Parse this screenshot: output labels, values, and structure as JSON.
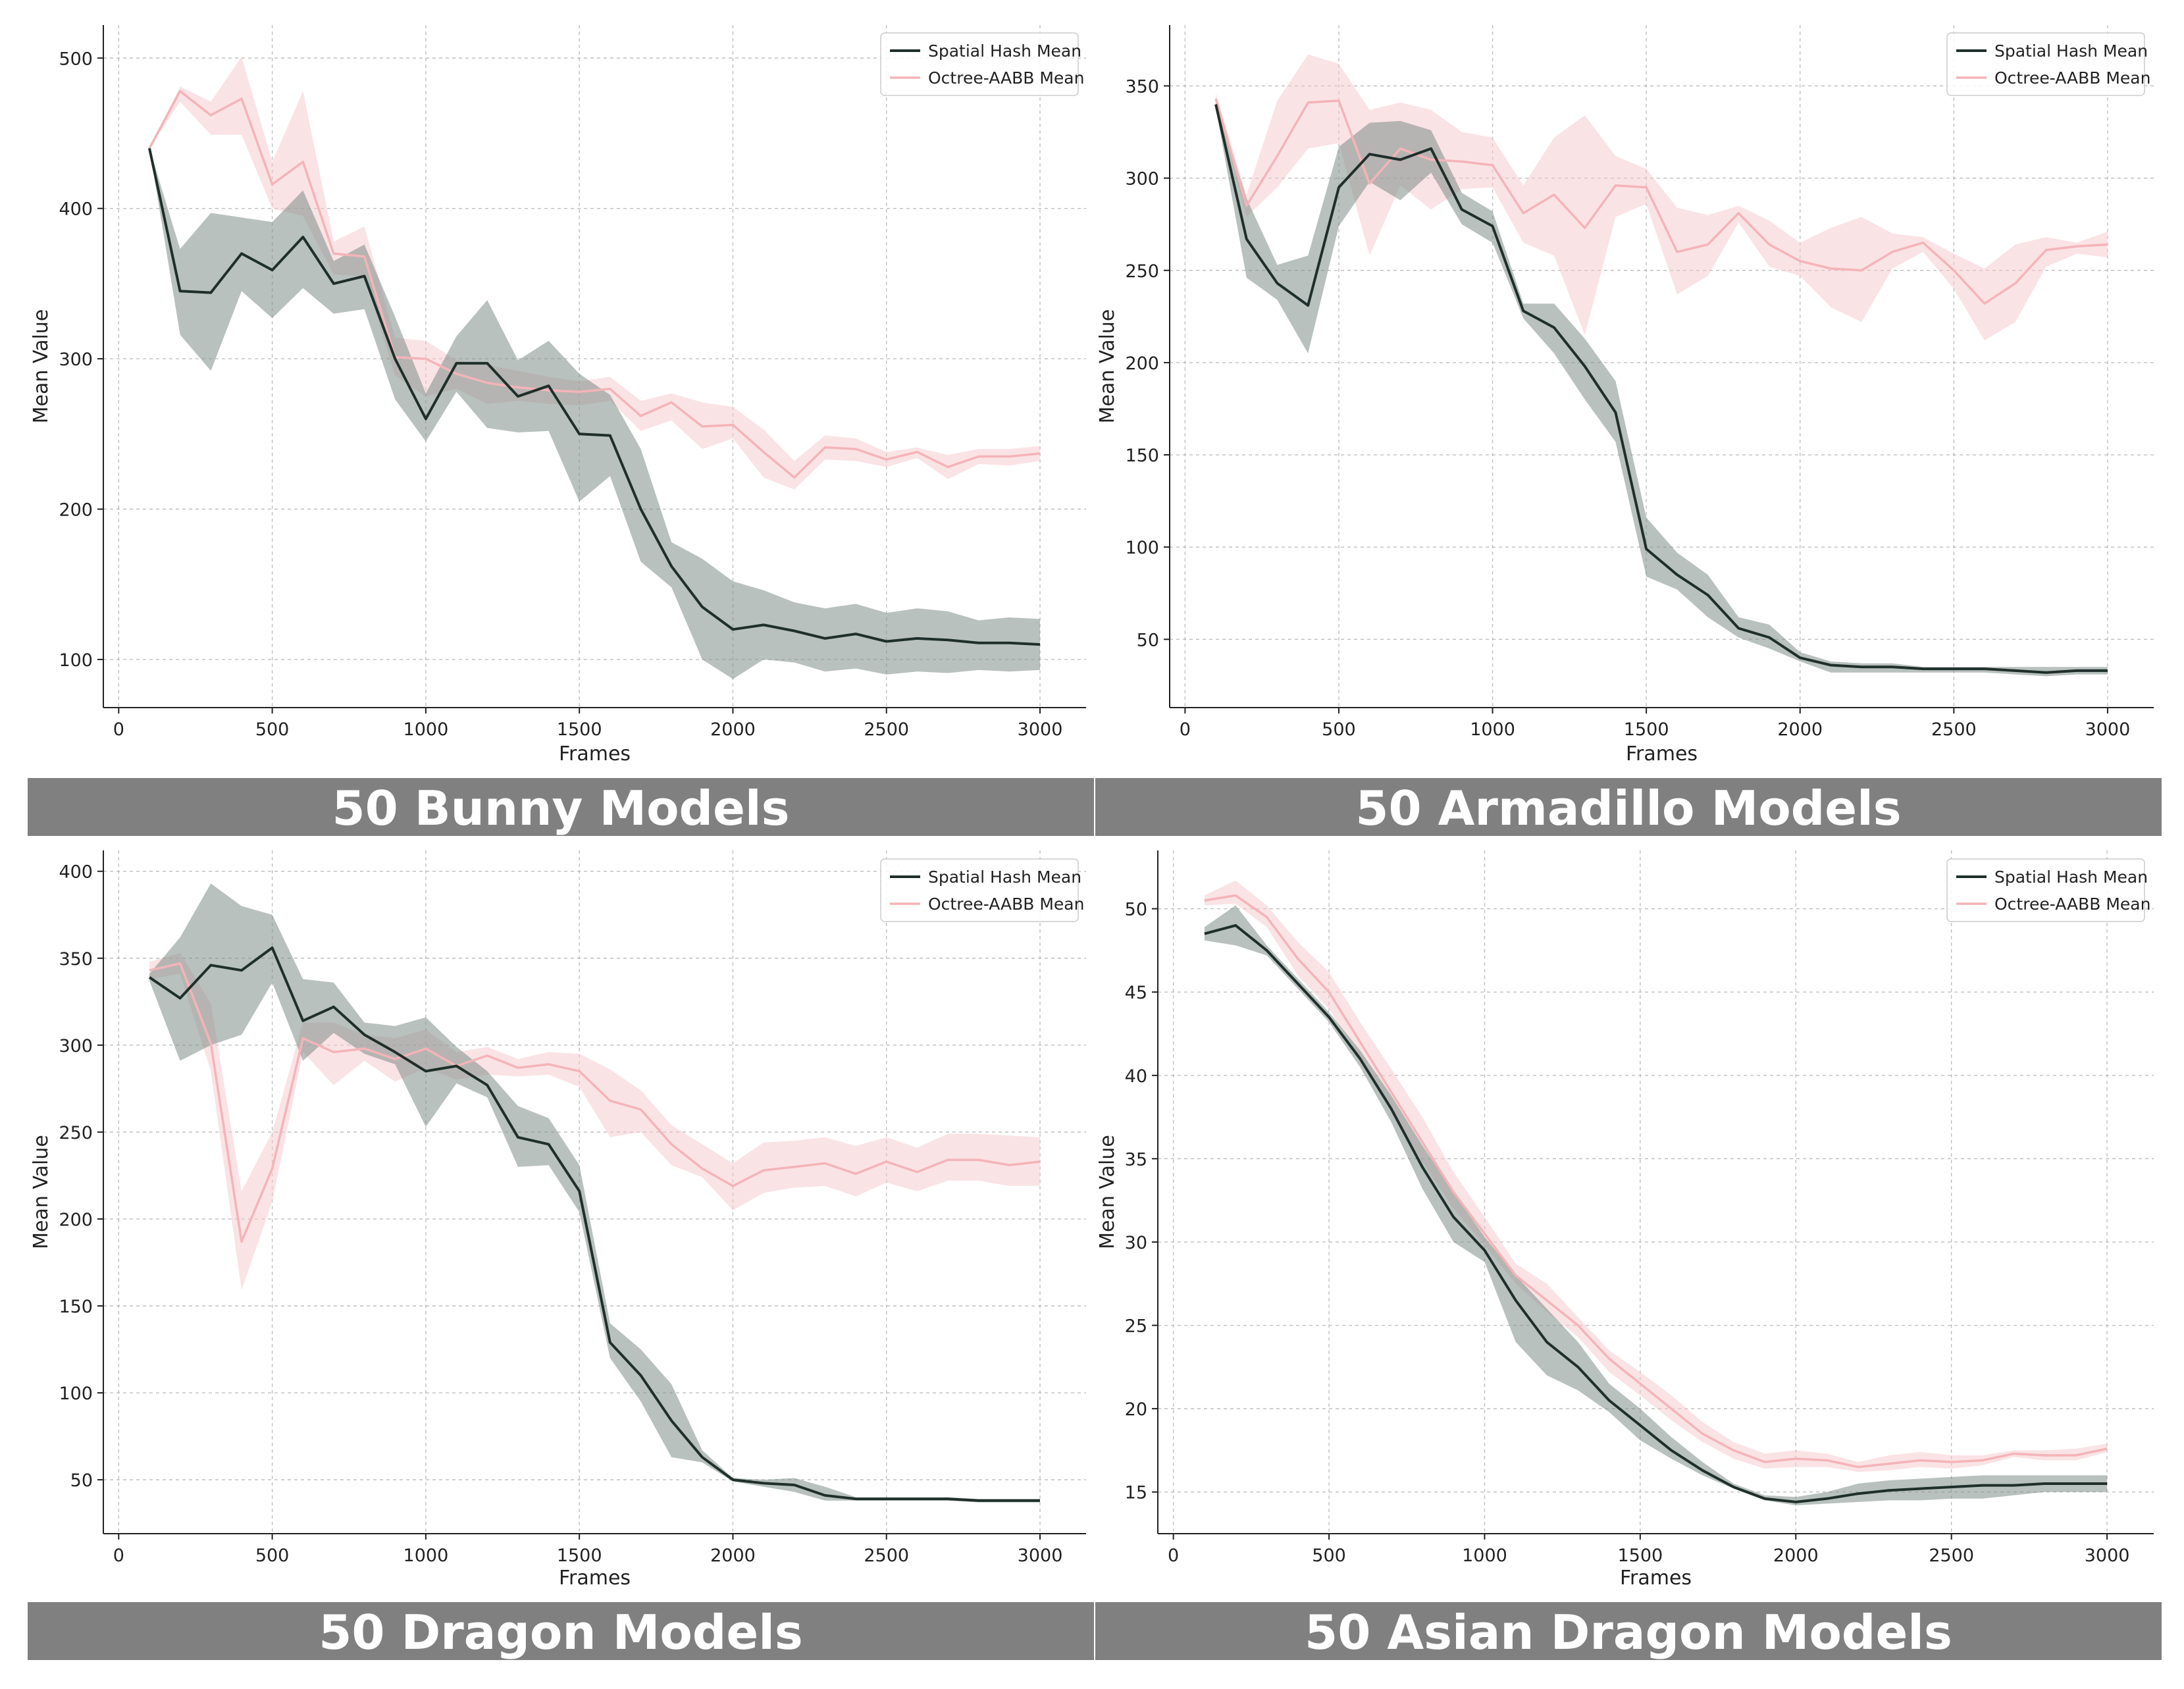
{
  "colors": {
    "spatial": "#1f2f2b",
    "spatial_band": "#7d8e88",
    "octree": "#f4b4b8",
    "octree_band": "#f6c8cb",
    "banner": "#808080",
    "grid": "#b0b0b0"
  },
  "chart_data": [
    {
      "type": "line",
      "title": "50 Bunny Models",
      "xlabel": "Frames",
      "ylabel": "Mean Value",
      "xlim": [
        -50,
        3150
      ],
      "ylim": [
        68,
        522
      ],
      "xticks": [
        0,
        500,
        1000,
        1500,
        2000,
        2500,
        3000
      ],
      "yticks": [
        100,
        200,
        300,
        400,
        500
      ],
      "grid": true,
      "legend_position": "top-right",
      "x": [
        100,
        200,
        300,
        400,
        500,
        600,
        700,
        800,
        900,
        1000,
        1100,
        1200,
        1300,
        1400,
        1500,
        1600,
        1700,
        1800,
        1900,
        2000,
        2100,
        2200,
        2300,
        2400,
        2500,
        2600,
        2700,
        2800,
        2900,
        3000
      ],
      "series": [
        {
          "name": "Spatial Hash Mean",
          "values": [
            440,
            345,
            344,
            370,
            359,
            381,
            350,
            355,
            300,
            260,
            297,
            297,
            275,
            282,
            250,
            249,
            200,
            162,
            135,
            120,
            123,
            119,
            114,
            117,
            112,
            114,
            113,
            111,
            111,
            110
          ],
          "lower": [
            440,
            316,
            292,
            345,
            327,
            347,
            330,
            333,
            273,
            245,
            278,
            254,
            251,
            252,
            205,
            222,
            165,
            148,
            100,
            87,
            100,
            98,
            92,
            94,
            90,
            92,
            91,
            93,
            92,
            93
          ],
          "upper": [
            440,
            373,
            397,
            394,
            391,
            412,
            365,
            376,
            328,
            277,
            315,
            339,
            299,
            312,
            290,
            276,
            240,
            178,
            167,
            152,
            146,
            138,
            134,
            137,
            131,
            134,
            132,
            126,
            128,
            127
          ]
        },
        {
          "name": "Octree-AABB Mean",
          "values": [
            440,
            478,
            462,
            473,
            416,
            431,
            370,
            368,
            301,
            300,
            290,
            284,
            281,
            279,
            278,
            280,
            262,
            271,
            255,
            256,
            238,
            221,
            241,
            240,
            233,
            238,
            228,
            235,
            235,
            237
          ],
          "lower": [
            440,
            471,
            449,
            449,
            400,
            395,
            356,
            355,
            289,
            275,
            280,
            270,
            272,
            270,
            269,
            272,
            252,
            259,
            240,
            247,
            221,
            213,
            233,
            232,
            228,
            234,
            220,
            230,
            229,
            232
          ],
          "upper": [
            440,
            481,
            471,
            501,
            431,
            478,
            378,
            388,
            314,
            312,
            299,
            296,
            292,
            288,
            285,
            288,
            272,
            277,
            271,
            268,
            253,
            232,
            249,
            247,
            238,
            241,
            236,
            240,
            240,
            242
          ]
        }
      ]
    },
    {
      "type": "line",
      "title": "50 Armadillo Models",
      "xlabel": "Frames",
      "ylabel": "Mean Value",
      "xlim": [
        -50,
        3150
      ],
      "ylim": [
        13,
        383
      ],
      "xticks": [
        0,
        500,
        1000,
        1500,
        2000,
        2500,
        3000
      ],
      "yticks": [
        50,
        100,
        150,
        200,
        250,
        300,
        350
      ],
      "grid": true,
      "legend_position": "top-right",
      "x": [
        100,
        200,
        300,
        400,
        500,
        600,
        700,
        800,
        900,
        1000,
        1100,
        1200,
        1300,
        1400,
        1500,
        1600,
        1700,
        1800,
        1900,
        2000,
        2100,
        2200,
        2300,
        2400,
        2500,
        2600,
        2700,
        2800,
        2900,
        3000
      ],
      "series": [
        {
          "name": "Spatial Hash Mean",
          "values": [
            340,
            267,
            243,
            231,
            295,
            313,
            310,
            316,
            283,
            274,
            228,
            219,
            198,
            173,
            99,
            85,
            74,
            56,
            51,
            40,
            36,
            35,
            35,
            34,
            34,
            34,
            33,
            32,
            33,
            33
          ],
          "lower": [
            338,
            246,
            234,
            205,
            274,
            298,
            288,
            303,
            275,
            265,
            224,
            205,
            180,
            157,
            84,
            77,
            62,
            51,
            45,
            38,
            32,
            32,
            32,
            32,
            32,
            32,
            31,
            30,
            31,
            31
          ],
          "upper": [
            342,
            289,
            253,
            258,
            317,
            330,
            331,
            326,
            292,
            282,
            232,
            232,
            213,
            190,
            116,
            97,
            85,
            62,
            58,
            43,
            38,
            37,
            37,
            35,
            35,
            35,
            35,
            35,
            35,
            35
          ]
        },
        {
          "name": "Octree-AABB Mean",
          "values": [
            343,
            285,
            312,
            341,
            342,
            297,
            316,
            310,
            309,
            307,
            281,
            291,
            273,
            296,
            295,
            260,
            264,
            281,
            264,
            255,
            251,
            250,
            260,
            265,
            250,
            232,
            243,
            261,
            263,
            264
          ],
          "lower": [
            340,
            279,
            295,
            316,
            319,
            258,
            296,
            283,
            294,
            295,
            265,
            258,
            215,
            279,
            286,
            237,
            247,
            276,
            252,
            247,
            230,
            222,
            251,
            260,
            240,
            212,
            222,
            252,
            259,
            257
          ],
          "upper": [
            346,
            291,
            342,
            367,
            362,
            337,
            341,
            337,
            325,
            322,
            296,
            322,
            334,
            312,
            305,
            284,
            280,
            285,
            277,
            265,
            273,
            279,
            270,
            268,
            259,
            251,
            264,
            268,
            265,
            271
          ]
        }
      ]
    },
    {
      "type": "line",
      "title": "50 Dragon Models",
      "xlabel": "Frames",
      "ylabel": "Mean Value",
      "xlim": [
        -50,
        3150
      ],
      "ylim": [
        19,
        412
      ],
      "xticks": [
        0,
        500,
        1000,
        1500,
        2000,
        2500,
        3000
      ],
      "yticks": [
        50,
        100,
        150,
        200,
        250,
        300,
        350,
        400
      ],
      "grid": true,
      "legend_position": "top-right",
      "x": [
        100,
        200,
        300,
        400,
        500,
        600,
        700,
        800,
        900,
        1000,
        1100,
        1200,
        1300,
        1400,
        1500,
        1600,
        1700,
        1800,
        1900,
        2000,
        2100,
        2200,
        2300,
        2400,
        2500,
        2600,
        2700,
        2800,
        2900,
        3000
      ],
      "series": [
        {
          "name": "Spatial Hash Mean",
          "values": [
            339,
            327,
            346,
            343,
            356,
            314,
            322,
            306,
            296,
            285,
            288,
            277,
            247,
            243,
            216,
            129,
            110,
            84,
            63,
            50,
            48,
            47,
            41,
            39,
            39,
            39,
            39,
            38,
            38,
            38
          ],
          "lower": [
            337,
            291,
            300,
            306,
            336,
            291,
            307,
            295,
            289,
            253,
            278,
            270,
            230,
            231,
            204,
            120,
            95,
            63,
            60,
            49,
            46,
            43,
            38,
            38,
            38,
            38,
            38,
            37,
            37,
            37
          ],
          "upper": [
            341,
            362,
            393,
            380,
            375,
            338,
            336,
            313,
            311,
            316,
            299,
            285,
            265,
            258,
            231,
            140,
            125,
            105,
            67,
            51,
            50,
            51,
            46,
            40,
            40,
            40,
            40,
            39,
            39,
            39
          ]
        },
        {
          "name": "Octree-AABB Mean",
          "values": [
            343,
            347,
            301,
            187,
            229,
            304,
            296,
            298,
            292,
            298,
            288,
            294,
            287,
            289,
            285,
            268,
            263,
            243,
            229,
            219,
            228,
            230,
            232,
            226,
            233,
            227,
            234,
            234,
            231,
            233
          ],
          "lower": [
            338,
            341,
            285,
            159,
            210,
            296,
            277,
            291,
            279,
            287,
            280,
            283,
            282,
            283,
            276,
            247,
            250,
            231,
            224,
            205,
            215,
            218,
            219,
            213,
            221,
            216,
            222,
            222,
            219,
            219
          ],
          "upper": [
            348,
            353,
            324,
            216,
            250,
            313,
            313,
            306,
            304,
            309,
            296,
            299,
            292,
            296,
            295,
            286,
            274,
            254,
            243,
            232,
            244,
            245,
            247,
            242,
            247,
            241,
            249,
            249,
            248,
            247
          ]
        }
      ]
    },
    {
      "type": "line",
      "title": "50 Asian Dragon Models",
      "xlabel": "Frames",
      "ylabel": "Mean Value",
      "xlim": [
        -50,
        3150
      ],
      "ylim": [
        12.5,
        53.5
      ],
      "xticks": [
        0,
        500,
        1000,
        1500,
        2000,
        2500,
        3000
      ],
      "yticks": [
        15,
        20,
        25,
        30,
        35,
        40,
        45,
        50
      ],
      "grid": true,
      "legend_position": "top-right",
      "x": [
        100,
        200,
        300,
        400,
        500,
        600,
        700,
        800,
        900,
        1000,
        1100,
        1200,
        1300,
        1400,
        1500,
        1600,
        1700,
        1800,
        1900,
        2000,
        2100,
        2200,
        2300,
        2400,
        2500,
        2600,
        2700,
        2800,
        2900,
        3000
      ],
      "series": [
        {
          "name": "Spatial Hash Mean",
          "values": [
            48.5,
            49.0,
            47.5,
            45.5,
            43.5,
            41.0,
            38.0,
            34.5,
            31.5,
            29.5,
            26.5,
            24.0,
            22.5,
            20.5,
            19.0,
            17.5,
            16.3,
            15.3,
            14.6,
            14.4,
            14.6,
            14.9,
            15.1,
            15.2,
            15.3,
            15.4,
            15.4,
            15.5,
            15.5,
            15.5
          ],
          "lower": [
            48.1,
            47.8,
            47.2,
            45.2,
            43.2,
            40.5,
            37.2,
            33.2,
            30.0,
            28.8,
            24.0,
            22.0,
            21.1,
            19.8,
            18.1,
            17.0,
            16.0,
            15.2,
            14.5,
            14.2,
            14.3,
            14.4,
            14.5,
            14.5,
            14.6,
            14.6,
            14.8,
            15.0,
            15.0,
            15.0
          ],
          "upper": [
            48.9,
            50.2,
            47.8,
            45.8,
            43.8,
            41.5,
            38.8,
            35.8,
            33.0,
            30.3,
            28.0,
            26.0,
            24.0,
            21.5,
            20.0,
            18.3,
            16.8,
            15.5,
            14.8,
            14.7,
            15.0,
            15.5,
            15.7,
            15.8,
            15.9,
            16.0,
            16.0,
            16.0,
            16.0,
            16.0
          ]
        },
        {
          "name": "Octree-AABB Mean",
          "values": [
            50.5,
            50.8,
            49.5,
            47.0,
            45.0,
            42.0,
            39.0,
            36.0,
            33.0,
            30.5,
            28.0,
            26.5,
            25.0,
            23.0,
            21.5,
            20.0,
            18.5,
            17.5,
            16.8,
            17.0,
            16.9,
            16.5,
            16.7,
            16.9,
            16.8,
            16.9,
            17.3,
            17.2,
            17.2,
            17.6
          ],
          "lower": [
            50.2,
            50.3,
            48.9,
            46.0,
            44.0,
            41.0,
            38.0,
            34.8,
            32.0,
            29.8,
            27.5,
            25.8,
            24.3,
            22.2,
            20.8,
            19.3,
            18.0,
            17.0,
            16.4,
            16.5,
            16.5,
            16.2,
            16.3,
            16.5,
            16.4,
            16.6,
            17.1,
            16.9,
            16.9,
            17.4
          ],
          "upper": [
            50.8,
            51.7,
            50.2,
            48.0,
            46.2,
            43.2,
            40.4,
            37.5,
            34.2,
            31.5,
            28.7,
            27.5,
            25.5,
            23.5,
            22.2,
            20.8,
            19.2,
            18.0,
            17.3,
            17.5,
            17.3,
            16.8,
            17.2,
            17.4,
            17.2,
            17.2,
            17.5,
            17.5,
            17.6,
            17.9
          ]
        }
      ]
    }
  ]
}
